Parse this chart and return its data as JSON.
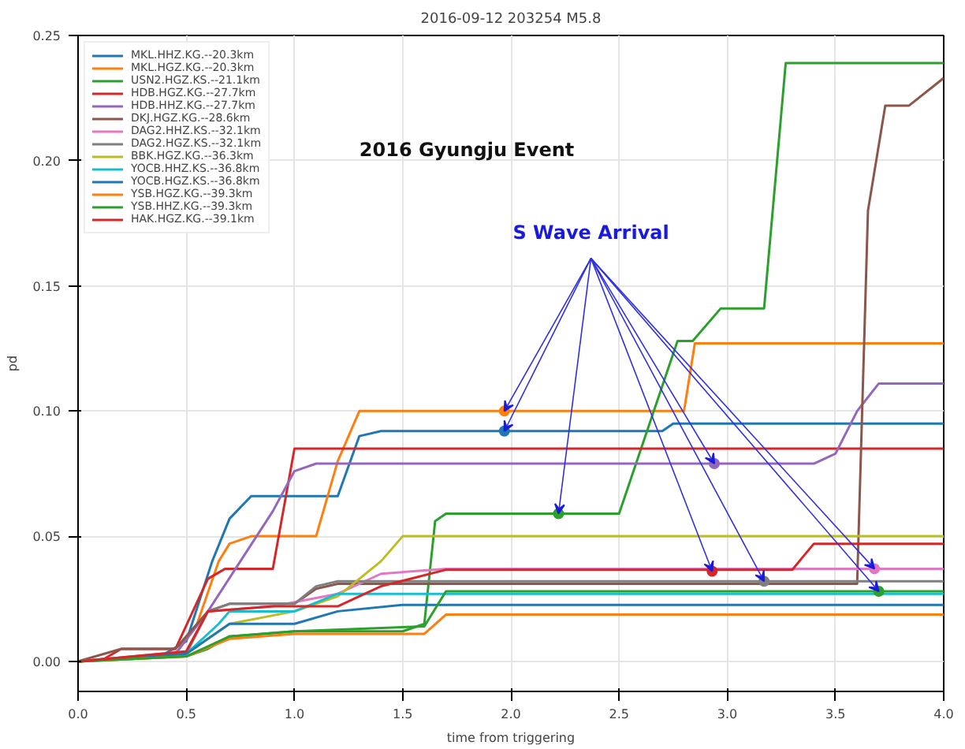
{
  "chart_data": {
    "type": "line",
    "title": "2016-09-12 203254 M5.8",
    "xlabel": "time from triggering",
    "ylabel": "pd",
    "xlim": [
      0,
      4
    ],
    "ylim": [
      -0.012,
      0.25
    ],
    "xticks": [
      {
        "value": 0,
        "label": "0.0"
      },
      {
        "value": 0.5,
        "label": "0.5"
      },
      {
        "value": 1,
        "label": "1.0"
      },
      {
        "value": 1.5,
        "label": "1.5"
      },
      {
        "value": 2,
        "label": "2.0"
      },
      {
        "value": 2.5,
        "label": "2.5"
      },
      {
        "value": 3,
        "label": "3.0"
      },
      {
        "value": 3.5,
        "label": "3.5"
      },
      {
        "value": 4,
        "label": "4.0"
      }
    ],
    "yticks": [
      {
        "value": 0,
        "label": "0.00"
      },
      {
        "value": 0.05,
        "label": "0.05"
      },
      {
        "value": 0.1,
        "label": "0.10"
      },
      {
        "value": 0.15,
        "label": "0.15"
      },
      {
        "value": 0.2,
        "label": "0.20"
      },
      {
        "value": 0.25,
        "label": "0.25"
      }
    ],
    "grid": true,
    "legend": "top left",
    "line_style": "solid",
    "annotations": [
      "2016 Gyungju Event",
      {
        "text": "S Wave Arrival",
        "x": 1.97,
        "y": 0.1
      }
    ],
    "series": [
      {
        "name": "MKL.HHZ.KG.--20.3km",
        "color": "#1f77b4",
        "x": [
          0,
          0.4,
          0.5,
          0.62,
          0.7,
          0.8,
          1.2,
          1.3,
          1.4,
          2.7,
          2.75,
          4
        ],
        "values": [
          0,
          0.003,
          0.008,
          0.04,
          0.057,
          0.066,
          0.066,
          0.09,
          0.092,
          0.092,
          0.095,
          0.095
        ]
      },
      {
        "name": "MKL.HGZ.KG.--20.3km",
        "color": "#ff7f0e",
        "x": [
          0,
          0.45,
          0.55,
          0.65,
          0.7,
          0.8,
          1.1,
          1.2,
          1.3,
          2.8,
          2.85,
          4
        ],
        "values": [
          0,
          0.003,
          0.015,
          0.04,
          0.047,
          0.05,
          0.05,
          0.08,
          0.1,
          0.1,
          0.127,
          0.127
        ]
      },
      {
        "name": "USN2.HGZ.KS.--21.1km",
        "color": "#2ca02c",
        "x": [
          0,
          0.5,
          0.6,
          0.7,
          1.0,
          1.5,
          1.6,
          1.65,
          1.7,
          2.5,
          2.77,
          2.84,
          2.97,
          3.17,
          3.27,
          4
        ],
        "values": [
          0,
          0.002,
          0.005,
          0.01,
          0.012,
          0.012,
          0.015,
          0.056,
          0.059,
          0.059,
          0.128,
          0.128,
          0.141,
          0.141,
          0.239,
          0.239
        ]
      },
      {
        "name": "HDB.HGZ.KG.--27.7km",
        "color": "#d62728",
        "x": [
          0,
          0.12,
          0.2,
          0.45,
          0.6,
          0.68,
          0.9,
          1.0,
          4
        ],
        "values": [
          0,
          0.001,
          0.005,
          0.005,
          0.033,
          0.037,
          0.037,
          0.085,
          0.085
        ]
      },
      {
        "name": "HDB.HHZ.KG.--27.7km",
        "color": "#9467bd",
        "x": [
          0,
          0.45,
          0.6,
          0.75,
          0.9,
          1.0,
          1.1,
          3.4,
          3.5,
          3.6,
          3.7,
          4
        ],
        "values": [
          0,
          0.003,
          0.02,
          0.04,
          0.06,
          0.076,
          0.079,
          0.079,
          0.083,
          0.1,
          0.111,
          0.111
        ]
      },
      {
        "name": "DKJ.HGZ.KG.--28.6km",
        "color": "#8c564b",
        "x": [
          0,
          0.2,
          0.45,
          0.6,
          0.7,
          1.0,
          1.1,
          1.2,
          3.6,
          3.65,
          3.73,
          3.84,
          4
        ],
        "values": [
          0,
          0.005,
          0.005,
          0.02,
          0.023,
          0.023,
          0.029,
          0.031,
          0.031,
          0.18,
          0.222,
          0.222,
          0.233
        ]
      },
      {
        "name": "DAG2.HHZ.KS.--32.1km",
        "color": "#e377c2",
        "x": [
          0,
          0.5,
          0.6,
          0.9,
          1.2,
          1.4,
          1.7,
          4
        ],
        "values": [
          0,
          0.004,
          0.02,
          0.022,
          0.027,
          0.035,
          0.037,
          0.037
        ]
      },
      {
        "name": "DAG2.HGZ.KS.--32.1km",
        "color": "#7f7f7f",
        "x": [
          0,
          0.5,
          0.6,
          0.7,
          1.0,
          1.1,
          1.2,
          4
        ],
        "values": [
          0,
          0.003,
          0.02,
          0.023,
          0.023,
          0.03,
          0.032,
          0.032
        ]
      },
      {
        "name": "BBK.HGZ.KG.--36.3km",
        "color": "#bcbd22",
        "x": [
          0,
          0.5,
          0.7,
          1.0,
          1.2,
          1.4,
          1.5,
          4
        ],
        "values": [
          0,
          0.003,
          0.015,
          0.02,
          0.026,
          0.04,
          0.05,
          0.05
        ]
      },
      {
        "name": "YOCB.HHZ.KS.--36.8km",
        "color": "#17becf",
        "x": [
          0,
          0.5,
          0.65,
          0.7,
          1.0,
          1.2,
          4
        ],
        "values": [
          0,
          0.003,
          0.015,
          0.02,
          0.02,
          0.027,
          0.027
        ]
      },
      {
        "name": "YOCB.HGZ.KS.--36.8km",
        "color": "#1f77b4",
        "x": [
          0,
          0.5,
          0.65,
          0.7,
          1.0,
          1.2,
          1.5,
          4
        ],
        "values": [
          0,
          0.003,
          0.012,
          0.015,
          0.015,
          0.02,
          0.0226,
          0.0226
        ]
      },
      {
        "name": "YSB.HGZ.KG.--39.3km",
        "color": "#ff7f0e",
        "x": [
          0,
          0.5,
          0.7,
          1.0,
          1.6,
          1.7,
          4
        ],
        "values": [
          0,
          0.002,
          0.009,
          0.011,
          0.011,
          0.0187,
          0.0187
        ]
      },
      {
        "name": "YSB.HHZ.KG.--39.3km",
        "color": "#2ca02c",
        "x": [
          0,
          0.5,
          0.7,
          1.0,
          1.6,
          1.7,
          4
        ],
        "values": [
          0,
          0.002,
          0.01,
          0.012,
          0.014,
          0.028,
          0.028
        ]
      },
      {
        "name": "HAK.HGZ.KG.--39.1km",
        "color": "#d62728",
        "x": [
          0,
          0.5,
          0.6,
          0.9,
          1.2,
          1.4,
          1.7,
          3.3,
          3.4,
          4
        ],
        "values": [
          0,
          0.004,
          0.02,
          0.022,
          0.022,
          0.03,
          0.0366,
          0.0366,
          0.047,
          0.047
        ]
      },
      {
        "type": "scatter",
        "marker": "circle",
        "x": [
          1.97,
          1.97,
          2.22,
          2.94,
          2.93,
          3.17,
          3.68,
          3.7
        ],
        "values": [
          0.1,
          0.092,
          0.059,
          0.079,
          0.036,
          0.032,
          0.037,
          0.028
        ],
        "colors": [
          "#ff7f0e",
          "#1f77b4",
          "#2ca02c",
          "#9467bd",
          "#d62728",
          "#7f7f7f",
          "#e377c2",
          "#2ca02c"
        ]
      }
    ]
  }
}
